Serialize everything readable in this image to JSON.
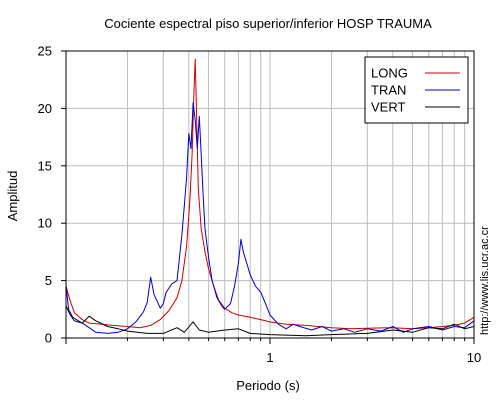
{
  "chart_data": {
    "type": "line",
    "title": "Cociente espectral piso superior/inferior  HOSP TRAUMA",
    "xlabel": "Periodo (s)",
    "ylabel": "Amplitud",
    "x_scale": "log",
    "xlim": [
      0.1,
      10
    ],
    "ylim": [
      0,
      25
    ],
    "x_ticks": [
      {
        "value": 1,
        "label": "1"
      },
      {
        "value": 10,
        "label": "10"
      }
    ],
    "y_ticks": [
      {
        "value": 0,
        "label": "0"
      },
      {
        "value": 5,
        "label": "5"
      },
      {
        "value": 10,
        "label": "10"
      },
      {
        "value": 15,
        "label": "15"
      },
      {
        "value": 20,
        "label": "20"
      },
      {
        "value": 25,
        "label": "25"
      }
    ],
    "grid": true,
    "legend": "top-right",
    "series": [
      {
        "name": "LONG",
        "color": "#cc0000",
        "points": [
          [
            0.1,
            4.5
          ],
          [
            0.105,
            3.2
          ],
          [
            0.11,
            2.2
          ],
          [
            0.12,
            1.6
          ],
          [
            0.13,
            1.3
          ],
          [
            0.15,
            1.2
          ],
          [
            0.17,
            1.1
          ],
          [
            0.2,
            1.0
          ],
          [
            0.23,
            0.9
          ],
          [
            0.26,
            1.1
          ],
          [
            0.29,
            1.6
          ],
          [
            0.32,
            2.4
          ],
          [
            0.35,
            3.5
          ],
          [
            0.37,
            5.0
          ],
          [
            0.39,
            8.0
          ],
          [
            0.405,
            12.0
          ],
          [
            0.415,
            16.0
          ],
          [
            0.425,
            22.0
          ],
          [
            0.43,
            24.3
          ],
          [
            0.435,
            20.5
          ],
          [
            0.445,
            13.0
          ],
          [
            0.46,
            9.5
          ],
          [
            0.48,
            7.5
          ],
          [
            0.5,
            6.0
          ],
          [
            0.53,
            4.5
          ],
          [
            0.56,
            3.3
          ],
          [
            0.6,
            2.6
          ],
          [
            0.65,
            2.2
          ],
          [
            0.7,
            2.0
          ],
          [
            0.8,
            1.8
          ],
          [
            0.9,
            1.6
          ],
          [
            1.0,
            1.4
          ],
          [
            1.2,
            1.2
          ],
          [
            1.5,
            1.1
          ],
          [
            2.0,
            0.9
          ],
          [
            2.5,
            0.8
          ],
          [
            3.0,
            0.85
          ],
          [
            4.0,
            0.9
          ],
          [
            5.0,
            0.8
          ],
          [
            6.0,
            0.9
          ],
          [
            7.0,
            1.0
          ],
          [
            8.0,
            1.1
          ],
          [
            9.0,
            1.3
          ],
          [
            10.0,
            1.8
          ]
        ]
      },
      {
        "name": "TRAN",
        "color": "#0000cc",
        "points": [
          [
            0.1,
            4.6
          ],
          [
            0.103,
            2.5
          ],
          [
            0.108,
            1.8
          ],
          [
            0.115,
            1.5
          ],
          [
            0.12,
            1.3
          ],
          [
            0.13,
            0.9
          ],
          [
            0.14,
            0.5
          ],
          [
            0.16,
            0.4
          ],
          [
            0.18,
            0.5
          ],
          [
            0.2,
            0.8
          ],
          [
            0.22,
            1.4
          ],
          [
            0.24,
            2.3
          ],
          [
            0.25,
            3.1
          ],
          [
            0.26,
            5.3
          ],
          [
            0.27,
            3.8
          ],
          [
            0.28,
            3.2
          ],
          [
            0.29,
            2.6
          ],
          [
            0.3,
            3.0
          ],
          [
            0.31,
            4.0
          ],
          [
            0.33,
            4.7
          ],
          [
            0.35,
            5.0
          ],
          [
            0.36,
            7.0
          ],
          [
            0.37,
            9.0
          ],
          [
            0.38,
            11.5
          ],
          [
            0.39,
            14.0
          ],
          [
            0.4,
            17.8
          ],
          [
            0.41,
            16.5
          ],
          [
            0.42,
            20.5
          ],
          [
            0.43,
            19.0
          ],
          [
            0.44,
            16.5
          ],
          [
            0.45,
            19.3
          ],
          [
            0.46,
            16.0
          ],
          [
            0.47,
            12.5
          ],
          [
            0.48,
            9.5
          ],
          [
            0.5,
            7.0
          ],
          [
            0.52,
            5.0
          ],
          [
            0.55,
            3.5
          ],
          [
            0.58,
            2.8
          ],
          [
            0.6,
            2.5
          ],
          [
            0.64,
            3.0
          ],
          [
            0.67,
            4.5
          ],
          [
            0.7,
            6.5
          ],
          [
            0.72,
            8.6
          ],
          [
            0.74,
            7.5
          ],
          [
            0.77,
            6.5
          ],
          [
            0.8,
            5.5
          ],
          [
            0.85,
            4.5
          ],
          [
            0.9,
            4.0
          ],
          [
            0.95,
            3.0
          ],
          [
            1.0,
            2.0
          ],
          [
            1.1,
            1.2
          ],
          [
            1.2,
            0.8
          ],
          [
            1.3,
            1.2
          ],
          [
            1.4,
            1.0
          ],
          [
            1.6,
            0.7
          ],
          [
            1.8,
            1.0
          ],
          [
            2.0,
            0.6
          ],
          [
            2.3,
            0.8
          ],
          [
            2.6,
            0.5
          ],
          [
            3.0,
            0.8
          ],
          [
            3.5,
            0.6
          ],
          [
            4.0,
            1.0
          ],
          [
            4.5,
            0.5
          ],
          [
            5.0,
            0.8
          ],
          [
            6.0,
            1.0
          ],
          [
            7.0,
            0.7
          ],
          [
            8.0,
            1.0
          ],
          [
            9.0,
            0.9
          ],
          [
            10.0,
            1.5
          ]
        ]
      },
      {
        "name": "VERT",
        "color": "#000000",
        "points": [
          [
            0.1,
            2.8
          ],
          [
            0.105,
            2.0
          ],
          [
            0.11,
            1.5
          ],
          [
            0.12,
            1.3
          ],
          [
            0.13,
            1.9
          ],
          [
            0.14,
            1.5
          ],
          [
            0.16,
            1.0
          ],
          [
            0.18,
            0.8
          ],
          [
            0.2,
            0.6
          ],
          [
            0.25,
            0.4
          ],
          [
            0.3,
            0.4
          ],
          [
            0.35,
            0.9
          ],
          [
            0.38,
            0.5
          ],
          [
            0.42,
            1.4
          ],
          [
            0.45,
            0.7
          ],
          [
            0.5,
            0.5
          ],
          [
            0.6,
            0.7
          ],
          [
            0.7,
            0.8
          ],
          [
            0.8,
            0.4
          ],
          [
            1.0,
            0.3
          ],
          [
            1.5,
            0.2
          ],
          [
            2.0,
            0.3
          ],
          [
            3.0,
            0.4
          ],
          [
            4.0,
            0.7
          ],
          [
            5.0,
            0.5
          ],
          [
            6.0,
            0.9
          ],
          [
            7.0,
            0.8
          ],
          [
            8.0,
            1.2
          ],
          [
            9.0,
            0.8
          ],
          [
            10.0,
            1.0
          ]
        ]
      }
    ],
    "side_text": "http://www.lis.ucr.ac.cr"
  }
}
